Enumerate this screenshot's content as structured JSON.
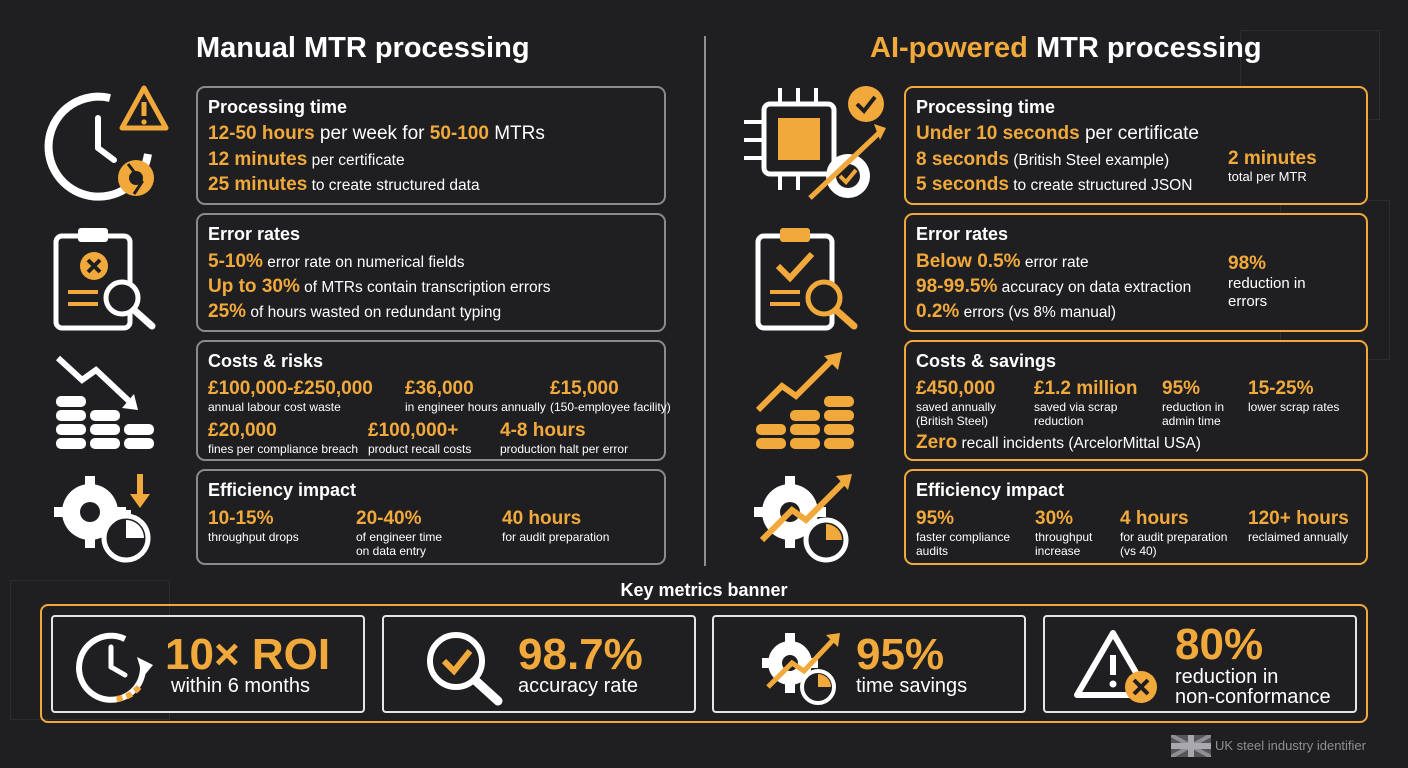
{
  "header": {
    "manual_title": "Manual MTR processing",
    "ai_title_accent": "AI-powered",
    "ai_title_rest": " MTR processing"
  },
  "manual": {
    "processing": {
      "title": "Processing time",
      "l1_a": "12-50 hours",
      "l1_b": " per week for ",
      "l1_c": "50-100",
      "l1_d": " MTRs",
      "l2_a": "12 minutes",
      "l2_b": " per certificate",
      "l3_a": "25 minutes",
      "l3_b": " to create structured data"
    },
    "errors": {
      "title": "Error rates",
      "l1_a": "5-10%",
      "l1_b": " error rate on numerical fields",
      "l2_a": "Up to 30%",
      "l2_b": " of MTRs contain transcription errors",
      "l3_a": "25%",
      "l3_b": " of hours wasted on redundant typing"
    },
    "costs": {
      "title": "Costs & risks",
      "items": [
        {
          "value": "£100,000-£250,000",
          "sub": "annual labour cost waste"
        },
        {
          "value": "£36,000",
          "sub": "in engineer hours annually"
        },
        {
          "value": "£15,000",
          "sub": "(150-employee facility)"
        },
        {
          "value": "£20,000",
          "sub": "fines per compliance breach"
        },
        {
          "value": "£100,000+",
          "sub": "product recall costs"
        },
        {
          "value": "4-8 hours",
          "sub": "production halt per error"
        }
      ]
    },
    "efficiency": {
      "title": "Efficiency impact",
      "items": [
        {
          "value": "10-15%",
          "sub1": "throughput drops",
          "sub2": ""
        },
        {
          "value": "20-40%",
          "sub1": "of engineer time",
          "sub2": "on data entry"
        },
        {
          "value": "40 hours",
          "sub1": "for audit preparation",
          "sub2": ""
        }
      ]
    }
  },
  "ai": {
    "processing": {
      "title": "Processing time",
      "l1_a": "Under 10 seconds",
      "l1_b": " per certificate",
      "l2_a": "8 seconds",
      "l2_b": " (British Steel example)",
      "l3_a": "5 seconds",
      "l3_b": " to create structured JSON",
      "side_value": "2 minutes",
      "side_sub": "total per MTR"
    },
    "errors": {
      "title": "Error rates",
      "l1_a": "Below 0.5%",
      "l1_b": " error rate",
      "l2_a": "98-99.5%",
      "l2_b": " accuracy on data extraction",
      "l3_a": "0.2%",
      "l3_b": " errors (vs 8% manual)",
      "side_value": "98%",
      "side_sub1": "reduction in",
      "side_sub2": "errors"
    },
    "costs": {
      "title": "Costs & savings",
      "items": [
        {
          "value": "£450,000",
          "sub1": "saved annually",
          "sub2": "(British Steel)"
        },
        {
          "value": "£1.2 million",
          "sub1": "saved via scrap",
          "sub2": "reduction"
        },
        {
          "value": "95%",
          "sub1": "reduction in",
          "sub2": "admin time"
        },
        {
          "value": "15-25%",
          "sub1": "lower scrap rates",
          "sub2": ""
        }
      ],
      "zero_a": "Zero",
      "zero_b": " recall incidents (ArcelorMittal USA)"
    },
    "efficiency": {
      "title": "Efficiency impact",
      "items": [
        {
          "value": "95%",
          "sub1": "faster compliance",
          "sub2": "audits"
        },
        {
          "value": "30%",
          "sub1": "throughput",
          "sub2": "increase"
        },
        {
          "value": "4 hours",
          "sub1": "for audit preparation",
          "sub2": "(vs 40)"
        },
        {
          "value": "120+ hours",
          "sub1": "reclaimed annually",
          "sub2": ""
        }
      ]
    }
  },
  "banner": {
    "title": "Key metrics banner",
    "cards": [
      {
        "value": "10× ROI",
        "sub1": "within 6 months",
        "sub2": "",
        "icon": "clock-refresh-icon"
      },
      {
        "value": "98.7%",
        "sub1": "accuracy rate",
        "sub2": "",
        "icon": "magnifier-check-icon"
      },
      {
        "value": "95%",
        "sub1": "time savings",
        "sub2": "",
        "icon": "gear-stopwatch-icon"
      },
      {
        "value": "80%",
        "sub1": "reduction in",
        "sub2": "non-conformance",
        "icon": "warning-x-icon"
      }
    ]
  },
  "footer": {
    "text": "UK steel industry identifier"
  },
  "colors": {
    "accent": "#f2a93b",
    "background": "#1f1f22",
    "border_grey": "#8a8a8f"
  }
}
